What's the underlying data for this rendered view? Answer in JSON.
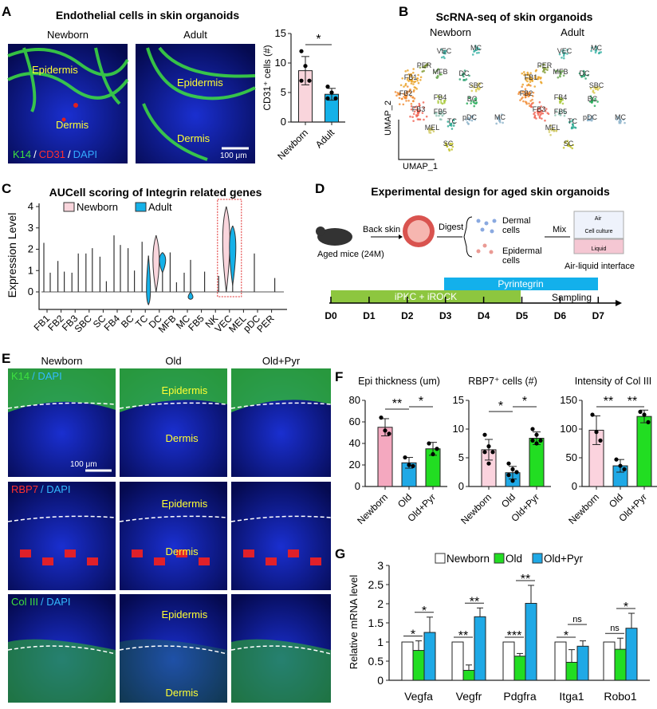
{
  "panels": {
    "A": "A",
    "B": "B",
    "C": "C",
    "D": "D",
    "E": "E",
    "F": "F",
    "G": "G"
  },
  "panelA": {
    "title": "Endothelial cells in skin organoids",
    "img_labels": [
      "Newborn",
      "Adult"
    ],
    "epidermis": "Epidermis",
    "dermis": "Dermis",
    "stain": [
      "K14",
      "/",
      "CD31",
      "/",
      "DAPI"
    ],
    "scale": "100 μm"
  },
  "panelB": {
    "title": "ScRNA-seq of skin organoids",
    "img_labels": [
      "Newborn",
      "Adult"
    ],
    "xlabel": "UMAP_1",
    "ylabel": "UMAP_2",
    "clusters": [
      "VEC",
      "MC",
      "PER",
      "MFB",
      "DC",
      "FB1",
      "SBC",
      "FB2",
      "FB4",
      "BC",
      "FB5",
      "FB3",
      "pDC",
      "TC",
      "MC",
      "MEL",
      "SC"
    ]
  },
  "panelD": {
    "title": "Experimental design for aged skin organoids",
    "back_skin": "Back skin",
    "digest": "Digest",
    "dermal": [
      "Dermal",
      "cells"
    ],
    "epidermal": [
      "Epidermal",
      "cells"
    ],
    "mix": "Mix",
    "air": "Air",
    "cell_culture": "Cell culture",
    "liquid": "Liquid",
    "ali": "Air-liquid interface",
    "mice": "Aged mice (24M)",
    "pyr": "Pyrintegrin",
    "ipkc": "iPKC + iROCK",
    "sampling": "Sampling",
    "days": [
      "D0",
      "D1",
      "D2",
      "D3",
      "D4",
      "D5",
      "D6",
      "D7"
    ]
  },
  "panelE": {
    "cols": [
      "Newborn",
      "Old",
      "Old+Pyr"
    ],
    "rows": [
      [
        "K14",
        "/ DAPI"
      ],
      [
        "RBP7",
        "/ DAPI"
      ],
      [
        "Col III",
        "/ DAPI"
      ]
    ],
    "epidermis": "Epidermis",
    "dermis": "Dermis",
    "scale": "100 μm"
  },
  "colors": {
    "newborn": "#f9d5dc",
    "newborn_F": "#f4a8bf",
    "adult": "#15b1e8",
    "old_F": "#1fa9e6",
    "pyr": "#22dd22",
    "green_bar": "#8dc63f",
    "blue_bar": "#13b0eb"
  },
  "chart_data": [
    {
      "id": "A",
      "type": "bar",
      "ylabel": "CD31⁺ cells (#)",
      "categories": [
        "Newborn",
        "Adult"
      ],
      "values": [
        8.7,
        4.7
      ],
      "sd": [
        2.4,
        1.0
      ],
      "points": [
        [
          12,
          9.5,
          7,
          7
        ],
        [
          6,
          5,
          4,
          4
        ]
      ],
      "ylim": [
        0,
        15
      ],
      "yticks": [
        0,
        5,
        10,
        15
      ],
      "sig": [
        {
          "pair": [
            0,
            1
          ],
          "label": "*"
        }
      ]
    },
    {
      "id": "C",
      "type": "violin",
      "title": "AUCell scoring of Integrin related genes",
      "ylabel": "Expression Level",
      "series": [
        {
          "name": "Newborn"
        },
        {
          "name": "Adult"
        }
      ],
      "categories": [
        "FB1",
        "FB2",
        "FB3",
        "SBC",
        "SC",
        "FB4",
        "BC",
        "TC",
        "DC",
        "MFB",
        "MC",
        "FB5",
        "NK",
        "VEC",
        "MEL",
        "pDC",
        "PER"
      ],
      "newborn_max": [
        2.3,
        1.45,
        0.9,
        1.8,
        1.65,
        2.65,
        2.05,
        2.35,
        2.65,
        1.85,
        0.9,
        0,
        0,
        4.0,
        0,
        1.8,
        0
      ],
      "adult_max": [
        0.9,
        0.95,
        1.8,
        2.05,
        0.5,
        2.2,
        1.0,
        1.7,
        1.85,
        0.45,
        1.5,
        0.95,
        0.75,
        3.1,
        0,
        0,
        0.65
      ],
      "ylim": [
        -0.8,
        4.2
      ],
      "yticks": [
        0,
        1,
        2,
        3,
        4
      ],
      "highlight": "VEC"
    },
    {
      "id": "F1",
      "type": "bar",
      "title": "Epi thickness (um)",
      "categories": [
        "Newborn",
        "Old",
        "Old+Pyr"
      ],
      "values": [
        55,
        22,
        35
      ],
      "sd": [
        8,
        5,
        6
      ],
      "points": [
        [
          64,
          52,
          49
        ],
        [
          27,
          20,
          19
        ],
        [
          40,
          30,
          35
        ]
      ],
      "ylim": [
        0,
        80
      ],
      "yticks": [
        0,
        20,
        40,
        60,
        80
      ],
      "sig": [
        {
          "pair": [
            0,
            1
          ],
          "label": "**"
        },
        {
          "pair": [
            1,
            2
          ],
          "label": "*"
        }
      ]
    },
    {
      "id": "F2",
      "type": "bar",
      "title": "RBP7⁺ cells (#)",
      "categories": [
        "Newborn",
        "Old",
        "Old+Pyr"
      ],
      "values": [
        6.4,
        2.4,
        8.4
      ],
      "sd": [
        1.8,
        1.1,
        1.1
      ],
      "points": [
        [
          9,
          7,
          6,
          6,
          4
        ],
        [
          4,
          3,
          2.5,
          2,
          1
        ],
        [
          10,
          9,
          8,
          8,
          7.5
        ]
      ],
      "ylim": [
        0,
        15
      ],
      "yticks": [
        0,
        5,
        10,
        15
      ],
      "sig": [
        {
          "pair": [
            0,
            1
          ],
          "label": "*"
        },
        {
          "pair": [
            1,
            2
          ],
          "label": "*"
        }
      ]
    },
    {
      "id": "F3",
      "type": "bar",
      "title": "Intensity of Col III",
      "categories": [
        "Newborn",
        "Old",
        "Old+Pyr"
      ],
      "values": [
        98,
        36,
        122
      ],
      "sd": [
        25,
        11,
        11
      ],
      "points": [
        [
          125,
          95,
          80
        ],
        [
          47,
          36,
          30
        ],
        [
          130,
          125,
          112
        ]
      ],
      "ylim": [
        0,
        150
      ],
      "yticks": [
        0,
        50,
        100,
        150
      ],
      "sig": [
        {
          "pair": [
            0,
            1
          ],
          "label": "**"
        },
        {
          "pair": [
            1,
            2
          ],
          "label": "**"
        }
      ]
    },
    {
      "id": "G",
      "type": "bar",
      "ylabel": "Relative mRNA level",
      "categories": [
        "Vegfa",
        "Vegfr",
        "Pdgfra",
        "Itga1",
        "Robo1"
      ],
      "series": [
        {
          "name": "Newborn",
          "values": [
            1,
            1,
            1,
            1,
            1
          ]
        },
        {
          "name": "Old",
          "values": [
            0.78,
            0.26,
            0.63,
            0.47,
            0.81
          ],
          "sd": [
            0.25,
            0.14,
            0.07,
            0.33,
            0.29
          ]
        },
        {
          "name": "Old+Pyr",
          "values": [
            1.25,
            1.66,
            2.01,
            0.89,
            1.36
          ],
          "sd": [
            0.4,
            0.23,
            0.47,
            0.14,
            0.39
          ]
        }
      ],
      "sig": [
        [
          "*",
          "*"
        ],
        [
          "**",
          "**"
        ],
        [
          "***",
          "**"
        ],
        [
          "*",
          "ns"
        ],
        [
          "ns",
          "*"
        ]
      ],
      "ylim": [
        0,
        3
      ],
      "yticks": [
        0,
        0.5,
        1,
        1.5,
        2,
        2.5,
        3
      ],
      "ytick_labels": [
        "0",
        "0.5",
        "1",
        "1.5",
        "2",
        "2.5",
        "3"
      ],
      "legend": "top"
    }
  ]
}
